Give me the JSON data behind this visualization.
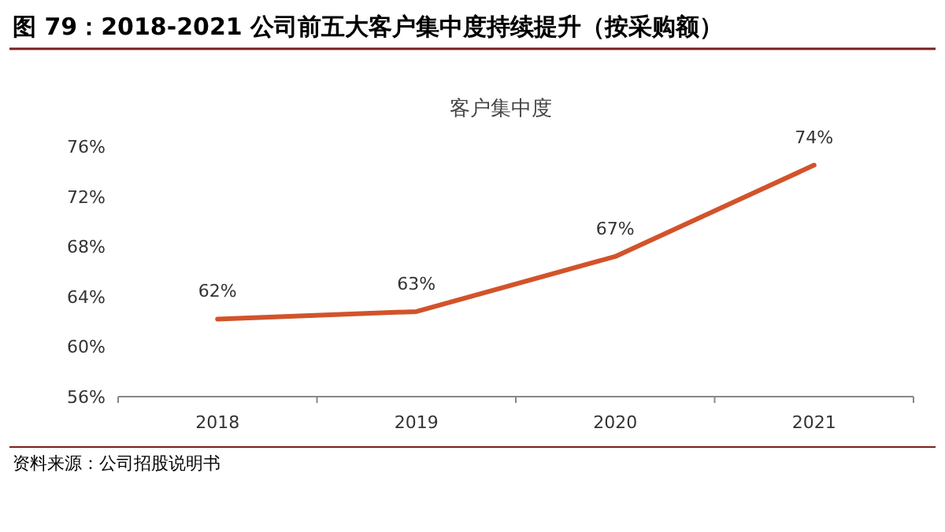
{
  "chart_data": {
    "type": "line",
    "title": "图 79：2018-2021 公司前五大客户集中度持续提升（按采购额）",
    "subtitle": "客户集中度",
    "categories": [
      "2018",
      "2019",
      "2020",
      "2021"
    ],
    "values": [
      62.2,
      62.8,
      67.2,
      74.5
    ],
    "value_labels": [
      "62%",
      "63%",
      "67%",
      "74%"
    ],
    "color": "#d2532b",
    "ylim": [
      56,
      76
    ],
    "yticks": [
      {
        "value": 56,
        "label": "56%"
      },
      {
        "value": 60,
        "label": "60%"
      },
      {
        "value": 64,
        "label": "64%"
      },
      {
        "value": 68,
        "label": "68%"
      },
      {
        "value": 72,
        "label": "72%"
      },
      {
        "value": 76,
        "label": "76%"
      }
    ],
    "annotations": [
      "资料来源：公司招股说明书"
    ]
  }
}
